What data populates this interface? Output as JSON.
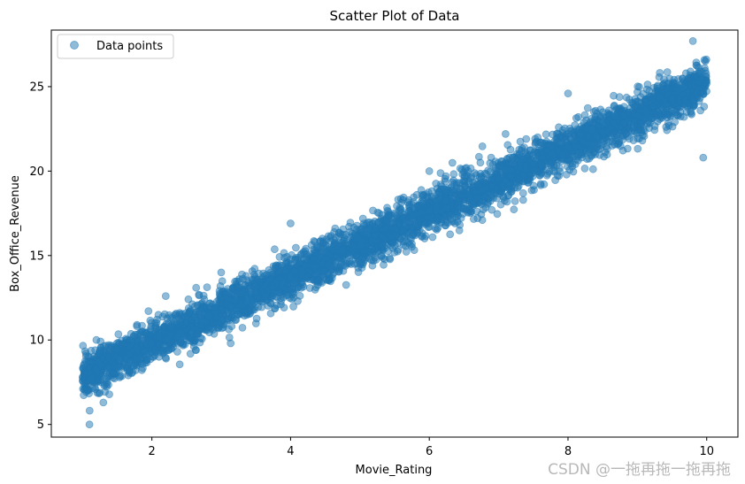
{
  "chart_data": {
    "type": "scatter",
    "title": "Scatter Plot of Data",
    "xlabel": "Movie_Rating",
    "ylabel": "Box_Office_Revenue",
    "xlim": [
      0.55,
      10.45
    ],
    "ylim": [
      4.25,
      28.35
    ],
    "xticks": [
      2,
      4,
      6,
      8,
      10
    ],
    "yticks": [
      5,
      10,
      15,
      20,
      25
    ],
    "grid": false,
    "legend": {
      "position": "top-left",
      "entries": [
        "Data points"
      ]
    },
    "series": [
      {
        "name": "Data points",
        "color": "#1f77b4",
        "alpha": 0.5,
        "trend": {
          "slope": 1.93,
          "intercept": 5.95,
          "noise_sd": 0.65
        },
        "x_range": [
          1.0,
          10.0
        ],
        "sample_points": [
          [
            1.0,
            7.8
          ],
          [
            1.05,
            9.2
          ],
          [
            1.1,
            5.0
          ],
          [
            1.2,
            10.0
          ],
          [
            1.5,
            9.0
          ],
          [
            2.0,
            9.8
          ],
          [
            2.5,
            11.0
          ],
          [
            3.0,
            11.8
          ],
          [
            3.5,
            12.8
          ],
          [
            4.0,
            13.7
          ],
          [
            4.5,
            14.8
          ],
          [
            5.0,
            15.6
          ],
          [
            5.5,
            16.6
          ],
          [
            6.0,
            17.6
          ],
          [
            6.5,
            18.5
          ],
          [
            7.0,
            19.5
          ],
          [
            7.5,
            20.4
          ],
          [
            8.0,
            21.4
          ],
          [
            8.5,
            22.3
          ],
          [
            9.0,
            23.3
          ],
          [
            9.5,
            24.3
          ],
          [
            10.0,
            25.2
          ],
          [
            9.8,
            27.7
          ],
          [
            9.95,
            20.8
          ],
          [
            4.0,
            16.9
          ],
          [
            3.0,
            14.0
          ],
          [
            8.0,
            24.6
          ],
          [
            6.0,
            20.0
          ],
          [
            2.2,
            12.6
          ],
          [
            7.1,
            22.2
          ]
        ]
      }
    ]
  },
  "watermark": "CSDN @一拖再拖一拖再拖"
}
